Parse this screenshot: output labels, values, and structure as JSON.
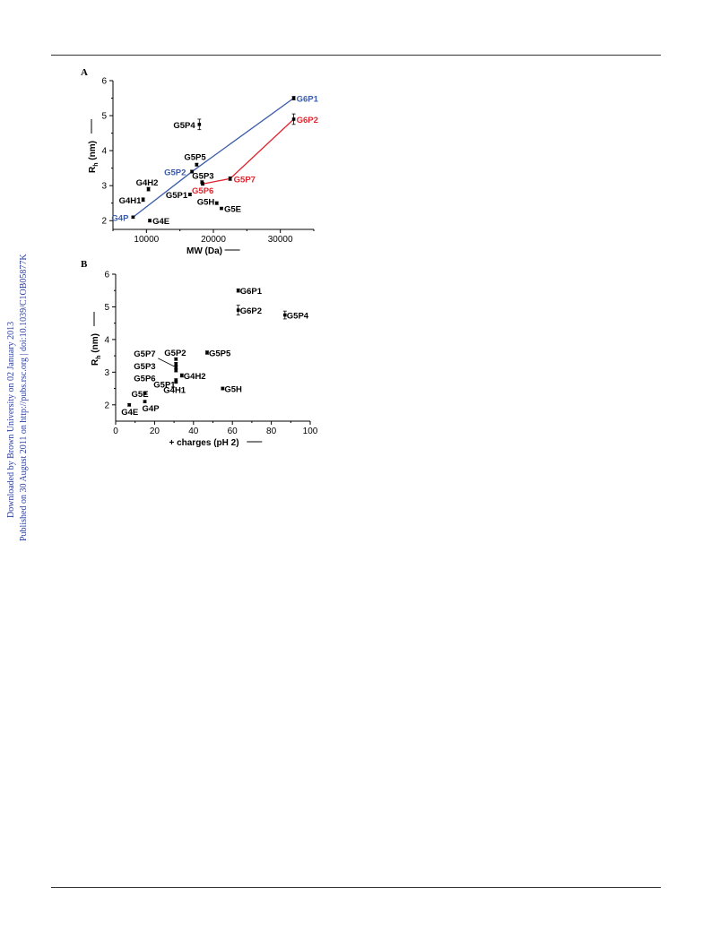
{
  "side_note": {
    "line1": "Downloaded by Brown University on 02 January 2013",
    "line2": "Published on 30 August 2011 on http://pubs.rsc.org | doi:10.1039/C1OB05877K"
  },
  "colors": {
    "black": "#000000",
    "blue": "#3b5ba9",
    "red": "#e0262f"
  },
  "chart_data": [
    {
      "panel": "A",
      "type": "scatter",
      "xlabel": "MW (Da)",
      "ylabel_main": "R",
      "ylabel_sub": "h",
      "ylabel_unit": "(nm)",
      "xlim": [
        5000,
        35000
      ],
      "ylim": [
        1.75,
        6
      ],
      "xticks": [
        10000,
        20000,
        30000
      ],
      "yticks": [
        2,
        3,
        4,
        5,
        6
      ],
      "points": [
        {
          "label": "G4P",
          "x": 8000,
          "y": 2.1,
          "err": 0.03,
          "color": "blue"
        },
        {
          "label": "G4E",
          "x": 10500,
          "y": 2.0,
          "err": 0.04,
          "color": "black"
        },
        {
          "label": "G4H1",
          "x": 9500,
          "y": 2.6,
          "err": 0.05,
          "color": "black"
        },
        {
          "label": "G4H2",
          "x": 10300,
          "y": 2.9,
          "err": 0.05,
          "color": "black"
        },
        {
          "label": "G5P1",
          "x": 16500,
          "y": 2.75,
          "err": 0.04,
          "color": "black"
        },
        {
          "label": "G5P2",
          "x": 16800,
          "y": 3.4,
          "err": 0.04,
          "color": "blue"
        },
        {
          "label": "G5P3",
          "x": 18300,
          "y": 3.1,
          "err": 0.04,
          "color": "black"
        },
        {
          "label": "G5P4",
          "x": 17900,
          "y": 4.75,
          "err": 0.15,
          "color": "black"
        },
        {
          "label": "G5P5",
          "x": 17500,
          "y": 3.6,
          "err": 0.04,
          "color": "black"
        },
        {
          "label": "G5P6",
          "x": 18400,
          "y": 3.05,
          "err": 0.04,
          "color": "red"
        },
        {
          "label": "G5P7",
          "x": 22500,
          "y": 3.2,
          "err": 0.05,
          "color": "red"
        },
        {
          "label": "G5H",
          "x": 20500,
          "y": 2.5,
          "err": 0.04,
          "color": "black"
        },
        {
          "label": "G5E",
          "x": 21200,
          "y": 2.35,
          "err": 0.03,
          "color": "black"
        },
        {
          "label": "G6P1",
          "x": 32000,
          "y": 5.5,
          "err": 0.05,
          "color": "blue"
        },
        {
          "label": "G6P2",
          "x": 32000,
          "y": 4.9,
          "err": 0.15,
          "color": "red"
        }
      ],
      "lines": [
        {
          "color": "blue",
          "x": [
            8000,
            16800,
            32000
          ],
          "y": [
            2.1,
            3.4,
            5.5
          ]
        },
        {
          "color": "red",
          "x": [
            18400,
            22500,
            32000
          ],
          "y": [
            3.05,
            3.2,
            4.9
          ]
        }
      ]
    },
    {
      "panel": "B",
      "type": "scatter",
      "xlabel": "+ charges (pH 2)",
      "ylabel_main": "R",
      "ylabel_sub": "h",
      "ylabel_unit": "(nm)",
      "xlim": [
        0,
        100
      ],
      "ylim": [
        1.5,
        6
      ],
      "xticks": [
        0,
        20,
        40,
        60,
        80,
        100
      ],
      "yticks": [
        2,
        3,
        4,
        5,
        6
      ],
      "points": [
        {
          "label": "G4E",
          "x": 7,
          "y": 2.0,
          "err": 0.04
        },
        {
          "label": "G5E",
          "x": 15,
          "y": 2.35,
          "err": 0.03
        },
        {
          "label": "G4P",
          "x": 15,
          "y": 2.1,
          "err": 0.03
        },
        {
          "label": "G4H1",
          "x": 31,
          "y": 2.75,
          "err": 0.05
        },
        {
          "label": "G5P1",
          "x": 31,
          "y": 2.7,
          "err": 0.04
        },
        {
          "label": "G4H2",
          "x": 34,
          "y": 2.9,
          "err": 0.05
        },
        {
          "label": "G5P2",
          "x": 31,
          "y": 3.4,
          "err": 0.04
        },
        {
          "label": "G5P7",
          "x": 31,
          "y": 3.25,
          "err": 0.05
        },
        {
          "label": "G5P3",
          "x": 31,
          "y": 3.15,
          "err": 0.04
        },
        {
          "label": "G5P6",
          "x": 31,
          "y": 3.05,
          "err": 0.04
        },
        {
          "label": "G5P5",
          "x": 47,
          "y": 3.6,
          "err": 0.05
        },
        {
          "label": "G5H",
          "x": 55,
          "y": 2.5,
          "err": 0.04
        },
        {
          "label": "G6P1",
          "x": 63,
          "y": 5.5,
          "err": 0.05
        },
        {
          "label": "G6P2",
          "x": 63,
          "y": 4.9,
          "err": 0.15
        },
        {
          "label": "G5P4",
          "x": 87,
          "y": 4.75,
          "err": 0.12
        }
      ]
    }
  ]
}
